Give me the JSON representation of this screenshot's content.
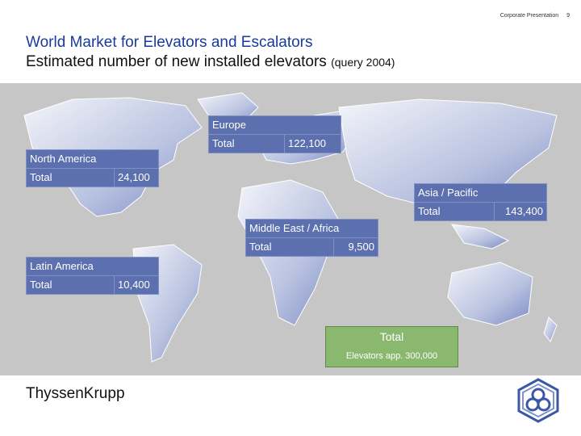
{
  "header": {
    "presentation": "Corporate Presentation",
    "page_number": "9"
  },
  "title": "World Market for Elevators and Escalators",
  "subtitle": {
    "main": "Estimated number of new installed elevators",
    "note": "(query 2004)"
  },
  "regions": {
    "europe": {
      "name": "Europe",
      "label": "Total",
      "value": "122,100"
    },
    "north_america": {
      "name": "North America",
      "label": "Total",
      "value": "24,100"
    },
    "asia_pacific": {
      "name": "Asia / Pacific",
      "label": "Total",
      "value": "143,400"
    },
    "middle_east_africa": {
      "name": "Middle East / Africa",
      "label": "Total",
      "value": "9,500"
    },
    "latin_america": {
      "name": "Latin America",
      "label": "Total",
      "value": "10,400"
    }
  },
  "grand_total": {
    "label": "Total",
    "value": "Elevators app. 300,000"
  },
  "footer": {
    "brand": "ThyssenKrupp"
  },
  "colors": {
    "title": "#1a3a9c",
    "region_box": "#5c6fae",
    "total_box": "#8ab86e",
    "map_bg": "#c6c6c6"
  }
}
